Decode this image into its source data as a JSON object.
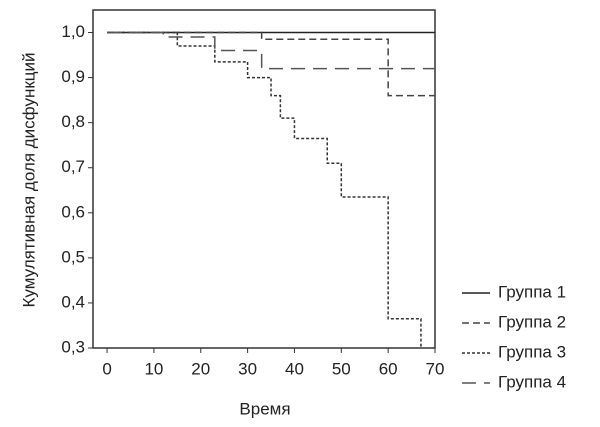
{
  "chart_data": {
    "type": "line",
    "step": "post",
    "x_label": "Время",
    "y_label": "Кумулятивная доля дисфункций",
    "xlim": [
      -3,
      70
    ],
    "ylim": [
      0.3,
      1.05
    ],
    "xticks": [
      0,
      10,
      20,
      30,
      40,
      50,
      60,
      70
    ],
    "yticks": [
      {
        "value": 1.0,
        "label": "1,0"
      },
      {
        "value": 0.9,
        "label": "0,9"
      },
      {
        "value": 0.8,
        "label": "0,8"
      },
      {
        "value": 0.7,
        "label": "0,7"
      },
      {
        "value": 0.6,
        "label": "0,6"
      },
      {
        "value": 0.5,
        "label": "0,5"
      },
      {
        "value": 0.4,
        "label": "0,4"
      },
      {
        "value": 0.3,
        "label": "0,3"
      }
    ],
    "legend": "right",
    "series": [
      {
        "name": "Группа 1",
        "color": "#222",
        "dash": "solid",
        "x": [
          0,
          70
        ],
        "values": [
          1.0,
          1.0
        ]
      },
      {
        "name": "Группа 2",
        "color": "#444",
        "dash": "dashed",
        "x": [
          0,
          33,
          60,
          70
        ],
        "values": [
          1.0,
          0.985,
          0.86,
          0.86
        ]
      },
      {
        "name": "Группа 3",
        "color": "#333",
        "dash": "dotted",
        "x": [
          0,
          15,
          23,
          30,
          35,
          37,
          40,
          47,
          50,
          60,
          67
        ],
        "values": [
          1.0,
          0.97,
          0.935,
          0.9,
          0.86,
          0.81,
          0.765,
          0.71,
          0.635,
          0.365,
          0.3
        ]
      },
      {
        "name": "Группа 4",
        "color": "#555",
        "dash": "longdash",
        "x": [
          0,
          12,
          23,
          33,
          70
        ],
        "values": [
          1.0,
          0.99,
          0.96,
          0.92,
          0.92
        ]
      }
    ]
  }
}
